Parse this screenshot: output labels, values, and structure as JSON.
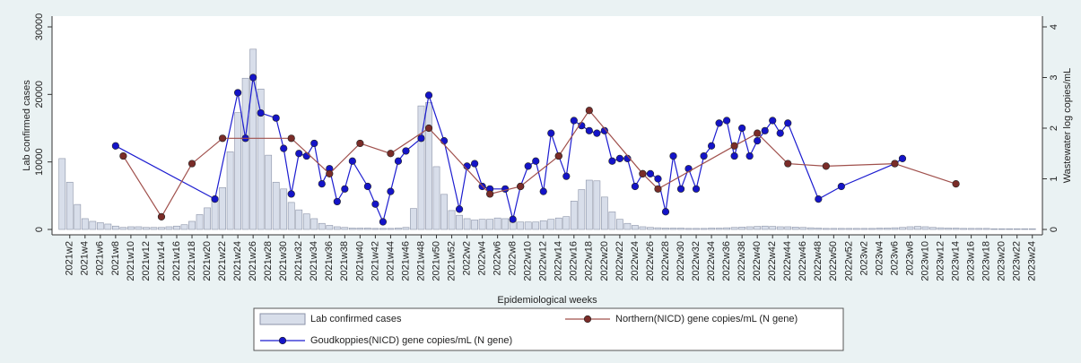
{
  "chart_data": {
    "type": "bar",
    "xlabel": "Epidemiological weeks",
    "ylabel": "Lab confirmed cases",
    "y2label": "Wastewater log copies/mL",
    "ylim": [
      0,
      30000
    ],
    "yticks": [
      0,
      10000,
      20000,
      30000
    ],
    "y2lim": [
      0,
      4
    ],
    "y2ticks": [
      0,
      1,
      2,
      3,
      4
    ],
    "legend": "bottom",
    "connect_missing": true,
    "categories": [
      null,
      "2021w2",
      null,
      "2021w4",
      null,
      "2021w6",
      null,
      "2021w8",
      null,
      "2021w10",
      null,
      "2021w12",
      null,
      "2021w14",
      null,
      "2021w16",
      null,
      "2021w18",
      null,
      "2021w20",
      null,
      "2021w22",
      null,
      "2021w24",
      null,
      "2021w26",
      null,
      "2021w28",
      null,
      "2021w30",
      null,
      "2021w32",
      null,
      "2021w34",
      null,
      "2021w36",
      null,
      "2021w38",
      null,
      "2021w40",
      null,
      "2021w42",
      null,
      "2021w44",
      null,
      "2021w46",
      null,
      "2021w48",
      null,
      "2021w50",
      null,
      "2021w52",
      null,
      "2022w2",
      null,
      "2022w4",
      null,
      "2022w6",
      null,
      "2022w8",
      null,
      "2022w10",
      null,
      "2022w12",
      null,
      "2022w14",
      null,
      "2022w16",
      null,
      "2022w18",
      null,
      "2022w20",
      null,
      "2022w22",
      null,
      "2022w24",
      null,
      "2022w26",
      null,
      "2022w28",
      null,
      "2022w30",
      null,
      "2022w32",
      null,
      "2022w34",
      null,
      "2022w36",
      null,
      "2022w38",
      null,
      "2022w40",
      null,
      "2022w42",
      null,
      "2022w44",
      null,
      "2022w46",
      null,
      "2022w48",
      null,
      "2022w50",
      null,
      "2022w52",
      null,
      "2023w2",
      null,
      "2023w4",
      null,
      "2023w6",
      null,
      "2023w8",
      null,
      "2023w10",
      null,
      "2023w12",
      null,
      "2023w14",
      null,
      "2023w16",
      null,
      "2023w18",
      null,
      "2023w20",
      null,
      "2023w22",
      null,
      "2023w24"
    ],
    "series": [
      {
        "name": "Lab confirmed cases",
        "type": "bar",
        "color": "#d8deea",
        "values": [
          10500,
          7000,
          3700,
          1600,
          1200,
          1000,
          800,
          500,
          300,
          400,
          400,
          300,
          300,
          300,
          400,
          500,
          700,
          1200,
          2200,
          3200,
          4700,
          6200,
          11500,
          17300,
          22400,
          26700,
          20800,
          11000,
          7000,
          6000,
          4000,
          2900,
          2300,
          1600,
          900,
          600,
          400,
          300,
          200,
          200,
          200,
          150,
          150,
          150,
          200,
          300,
          3100,
          18300,
          18800,
          9300,
          5200,
          2800,
          2100,
          1600,
          1400,
          1500,
          1500,
          1700,
          1600,
          1300,
          1100,
          1100,
          1100,
          1300,
          1500,
          1700,
          1900,
          4200,
          5900,
          7300,
          7200,
          4800,
          2600,
          1500,
          900,
          600,
          400,
          300,
          250,
          200,
          200,
          200,
          150,
          150,
          150,
          200,
          200,
          250,
          300,
          350,
          400,
          450,
          500,
          450,
          400,
          400,
          350,
          300,
          250,
          200,
          150,
          150,
          150,
          150,
          150,
          150,
          150,
          200,
          200,
          250,
          300,
          400,
          450,
          400,
          300,
          250,
          200,
          200,
          150,
          150,
          150,
          150,
          100,
          100,
          100,
          100,
          100,
          100
        ]
      },
      {
        "name": "Goudkoppies(NICD) gene copies/mL (N gene)",
        "type": "line",
        "axis": "y2",
        "color": "#1c1cd0",
        "values": [
          null,
          null,
          null,
          null,
          null,
          null,
          null,
          1.65,
          null,
          null,
          null,
          null,
          null,
          null,
          null,
          null,
          null,
          null,
          null,
          null,
          0.6,
          null,
          null,
          2.7,
          1.8,
          3.0,
          2.3,
          null,
          2.2,
          1.6,
          0.7,
          1.5,
          1.45,
          1.7,
          0.9,
          1.2,
          0.55,
          0.8,
          1.35,
          null,
          0.85,
          0.5,
          0.15,
          0.75,
          1.35,
          1.55,
          null,
          1.8,
          2.65,
          null,
          1.75,
          null,
          0.4,
          1.25,
          1.3,
          0.85,
          0.8,
          null,
          0.8,
          0.2,
          0.85,
          1.25,
          1.35,
          0.75,
          1.9,
          1.45,
          1.05,
          2.15,
          2.05,
          1.95,
          1.9,
          1.95,
          1.35,
          1.4,
          1.4,
          0.85,
          1.1,
          1.1,
          1.0,
          0.35,
          1.45,
          0.8,
          1.2,
          0.8,
          1.45,
          1.65,
          2.1,
          2.15,
          1.45,
          2.0,
          1.45,
          1.75,
          1.95,
          2.15,
          1.9,
          2.1,
          null,
          null,
          null,
          0.6,
          null,
          null,
          0.85,
          null,
          null,
          null,
          null,
          null,
          null,
          1.3,
          1.4,
          null,
          null,
          null,
          null,
          null,
          null,
          null,
          null,
          null,
          null,
          null,
          null,
          null,
          null,
          null,
          null,
          null
        ]
      },
      {
        "name": "Northern(NICD) gene copies/mL (N gene)",
        "type": "line",
        "axis": "y2",
        "color": "#a0504c",
        "values": [
          null,
          null,
          null,
          null,
          null,
          null,
          null,
          null,
          1.45,
          null,
          null,
          null,
          null,
          0.25,
          null,
          null,
          null,
          1.3,
          null,
          null,
          null,
          1.8,
          null,
          null,
          null,
          null,
          null,
          null,
          null,
          null,
          1.8,
          null,
          null,
          null,
          null,
          1.1,
          null,
          null,
          null,
          1.7,
          null,
          null,
          null,
          1.5,
          null,
          null,
          null,
          null,
          2.0,
          null,
          null,
          null,
          null,
          null,
          null,
          null,
          0.7,
          null,
          null,
          null,
          0.85,
          null,
          null,
          null,
          null,
          1.45,
          null,
          null,
          null,
          2.35,
          null,
          null,
          null,
          null,
          null,
          null,
          1.1,
          null,
          0.8,
          null,
          null,
          null,
          null,
          null,
          null,
          null,
          null,
          null,
          1.65,
          null,
          null,
          1.9,
          null,
          null,
          null,
          1.3,
          null,
          null,
          null,
          null,
          1.25,
          null,
          null,
          null,
          null,
          null,
          null,
          null,
          null,
          1.3,
          null,
          null,
          null,
          null,
          null,
          null,
          null,
          0.9,
          null,
          null,
          null,
          null,
          null,
          null,
          null,
          null,
          null,
          null
        ]
      }
    ]
  }
}
